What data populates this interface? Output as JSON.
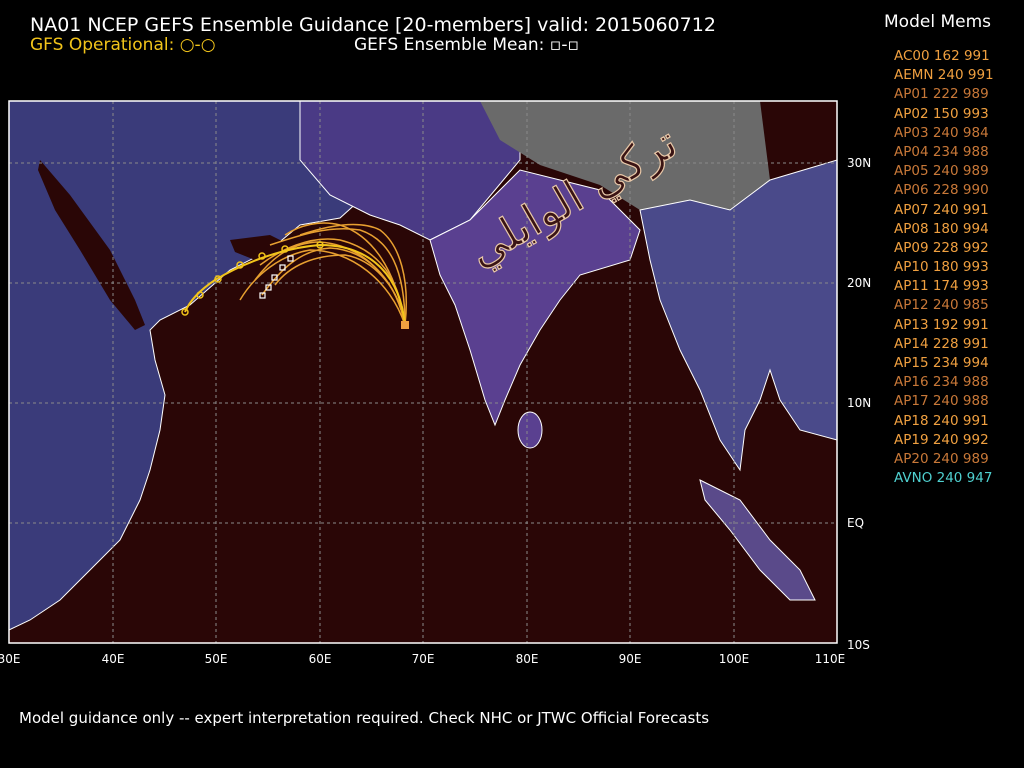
{
  "header": {
    "title": "NA01 NCEP GEFS Ensemble Guidance [20-members] valid: 2015060712",
    "gfs_operational": "GFS Operational: ○-○",
    "ensemble_mean": "GEFS Ensemble Mean: ▫-▫"
  },
  "legend": {
    "title": "Model Mems",
    "items": [
      {
        "label": "AC00 162 991",
        "color": "#f0a040"
      },
      {
        "label": "AEMN 240 991",
        "color": "#f0a040"
      },
      {
        "label": "AP01 222 989",
        "color": "#c87838"
      },
      {
        "label": "AP02 150 993",
        "color": "#f0a040"
      },
      {
        "label": "AP03 240 984",
        "color": "#c87838"
      },
      {
        "label": "AP04 234 988",
        "color": "#c87838"
      },
      {
        "label": "AP05 240 989",
        "color": "#c87838"
      },
      {
        "label": "AP06 228 990",
        "color": "#c87838"
      },
      {
        "label": "AP07 240 991",
        "color": "#f0a040"
      },
      {
        "label": "AP08 180 994",
        "color": "#f0a040"
      },
      {
        "label": "AP09 228 992",
        "color": "#f0a040"
      },
      {
        "label": "AP10 180 993",
        "color": "#f0a040"
      },
      {
        "label": "AP11 174 993",
        "color": "#f0a040"
      },
      {
        "label": "AP12 240 985",
        "color": "#c87838"
      },
      {
        "label": "AP13 192 991",
        "color": "#f0a040"
      },
      {
        "label": "AP14 228 991",
        "color": "#f0a040"
      },
      {
        "label": "AP15 234 994",
        "color": "#f0a040"
      },
      {
        "label": "AP16 234 988",
        "color": "#c87838"
      },
      {
        "label": "AP17 240 988",
        "color": "#c87838"
      },
      {
        "label": "AP18 240 991",
        "color": "#f0a040"
      },
      {
        "label": "AP19 240 992",
        "color": "#f0a040"
      },
      {
        "label": "AP20 240 989",
        "color": "#c87838"
      },
      {
        "label": "AVNO 240 947",
        "color": "#4fd0d0"
      }
    ]
  },
  "map": {
    "lat_labels": [
      "30N",
      "20N",
      "10N",
      "EQ",
      "10S"
    ],
    "lon_labels": [
      "30E",
      "40E",
      "50E",
      "60E",
      "70E",
      "80E",
      "90E",
      "100E",
      "110E"
    ],
    "watermark": "تركي الوايلي"
  },
  "footer": {
    "disclaimer": "Model guidance only -- expert interpretation required.  Check NHC or JTWC Official Forecasts"
  }
}
